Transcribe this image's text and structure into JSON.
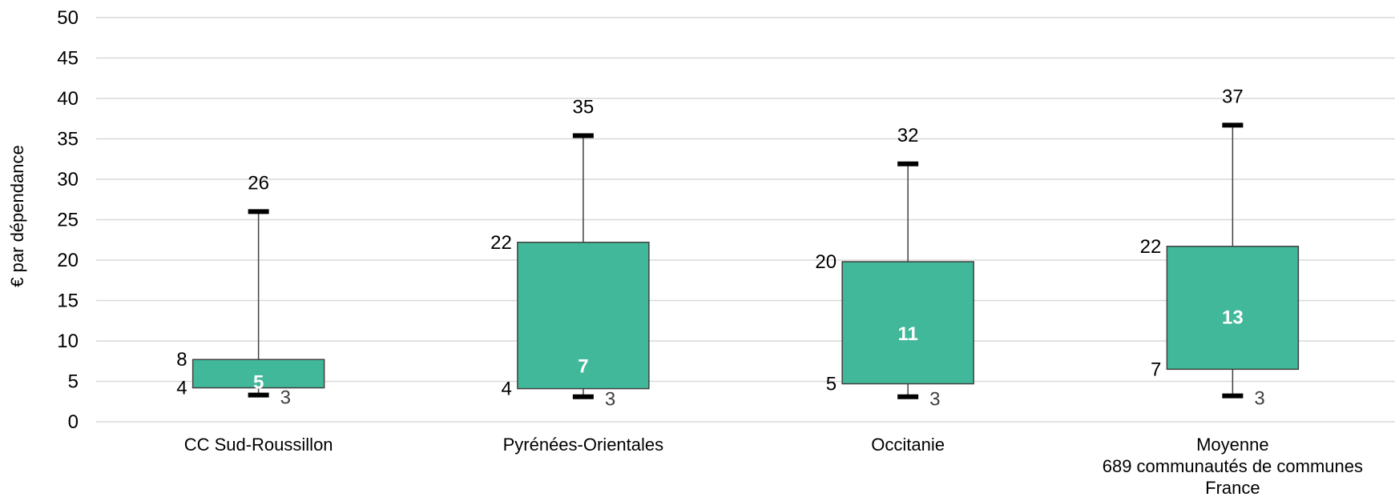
{
  "chart_data": {
    "type": "boxplot",
    "ylabel": "€ par dépendance",
    "ylim": [
      0,
      50
    ],
    "yticks": [
      0,
      5,
      10,
      15,
      20,
      25,
      30,
      35,
      40,
      45,
      50
    ],
    "grid": true,
    "box_color": "#41b899",
    "categories": [
      {
        "label": [
          "CC Sud-Roussillon"
        ],
        "min": 3.3,
        "q1": 4.2,
        "median": 5,
        "q3": 7.7,
        "max": 26,
        "labels": {
          "min": "3",
          "q1": "4",
          "median": "5",
          "q3": "8",
          "max": "26"
        }
      },
      {
        "label": [
          "Pyrénées-Orientales"
        ],
        "min": 3.1,
        "q1": 4.1,
        "median": 7,
        "q3": 22.2,
        "max": 35.4,
        "labels": {
          "min": "3",
          "q1": "4",
          "median": "7",
          "q3": "22",
          "max": "35"
        }
      },
      {
        "label": [
          "Occitanie"
        ],
        "min": 3.1,
        "q1": 4.7,
        "median": 11,
        "q3": 19.8,
        "max": 31.9,
        "labels": {
          "min": "3",
          "q1": "5",
          "median": "11",
          "q3": "20",
          "max": "32"
        }
      },
      {
        "label": [
          "Moyenne",
          "689 communautés de communes",
          "France"
        ],
        "min": 3.2,
        "q1": 6.5,
        "median": 13,
        "q3": 21.7,
        "max": 36.7,
        "labels": {
          "min": "3",
          "q1": "7",
          "median": "13",
          "q3": "22",
          "max": "37"
        }
      }
    ]
  }
}
